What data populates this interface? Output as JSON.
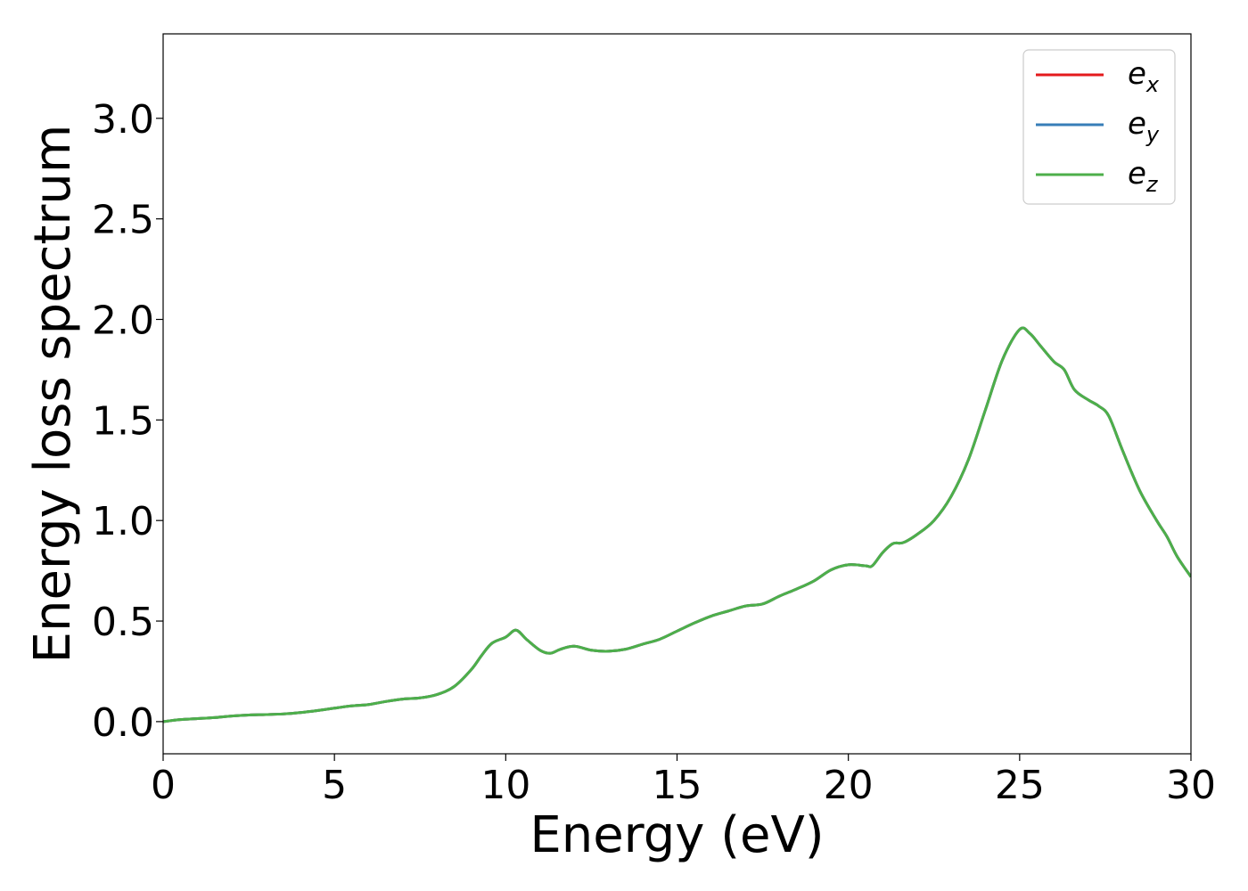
{
  "chart_data": {
    "type": "line",
    "title": "",
    "xlabel": "Energy (eV)",
    "ylabel": "Energy loss spectrum",
    "xlim": [
      0,
      30
    ],
    "ylim": [
      -0.16,
      3.42
    ],
    "xticks": [
      0,
      5,
      10,
      15,
      20,
      25,
      30
    ],
    "xtick_labels": [
      "0",
      "5",
      "10",
      "15",
      "20",
      "25",
      "30"
    ],
    "yticks": [
      0.0,
      0.5,
      1.0,
      1.5,
      2.0,
      2.5,
      3.0
    ],
    "ytick_labels": [
      "0.0",
      "0.5",
      "1.0",
      "1.5",
      "2.0",
      "2.5",
      "3.0"
    ],
    "grid": false,
    "legend_position": "top-right",
    "x": [
      0,
      0.5,
      1,
      1.5,
      2,
      2.5,
      3,
      3.5,
      4,
      4.5,
      5,
      5.5,
      6,
      6.5,
      7,
      7.5,
      8,
      8.5,
      9,
      9.3,
      9.6,
      10,
      10.3,
      10.6,
      11,
      11.3,
      11.6,
      12,
      12.5,
      13,
      13.5,
      14,
      14.5,
      15,
      15.5,
      16,
      16.5,
      17,
      17.5,
      18,
      18.5,
      19,
      19.5,
      20,
      20.5,
      20.7,
      21,
      21.3,
      21.6,
      22,
      22.5,
      23,
      23.5,
      24,
      24.5,
      25,
      25.3,
      25.6,
      26,
      26.3,
      26.6,
      27,
      27.3,
      27.6,
      28,
      28.5,
      29,
      29.3,
      29.6,
      30
    ],
    "series": [
      {
        "name": "e_x",
        "label_main": "e",
        "label_sub": "x",
        "color": "#e41a1c",
        "values": [
          0.0,
          0.01,
          0.015,
          0.02,
          0.028,
          0.033,
          0.035,
          0.038,
          0.045,
          0.055,
          0.067,
          0.078,
          0.085,
          0.1,
          0.112,
          0.118,
          0.135,
          0.175,
          0.26,
          0.33,
          0.39,
          0.42,
          0.455,
          0.41,
          0.355,
          0.34,
          0.36,
          0.375,
          0.355,
          0.35,
          0.36,
          0.385,
          0.41,
          0.45,
          0.49,
          0.525,
          0.55,
          0.575,
          0.585,
          0.625,
          0.66,
          0.7,
          0.755,
          0.78,
          0.775,
          0.775,
          0.84,
          0.885,
          0.89,
          0.93,
          1.0,
          1.12,
          1.3,
          1.55,
          1.8,
          1.95,
          1.93,
          1.87,
          1.79,
          1.75,
          1.65,
          1.6,
          1.57,
          1.52,
          1.35,
          1.15,
          1.0,
          0.92,
          0.82,
          0.72
        ]
      },
      {
        "name": "e_y",
        "label_main": "e",
        "label_sub": "y",
        "color": "#377eb8",
        "values": [
          0.0,
          0.01,
          0.015,
          0.02,
          0.028,
          0.033,
          0.035,
          0.038,
          0.045,
          0.055,
          0.067,
          0.078,
          0.085,
          0.1,
          0.112,
          0.118,
          0.135,
          0.175,
          0.26,
          0.33,
          0.39,
          0.42,
          0.455,
          0.41,
          0.355,
          0.34,
          0.36,
          0.375,
          0.355,
          0.35,
          0.36,
          0.385,
          0.41,
          0.45,
          0.49,
          0.525,
          0.55,
          0.575,
          0.585,
          0.625,
          0.66,
          0.7,
          0.755,
          0.78,
          0.775,
          0.775,
          0.84,
          0.885,
          0.89,
          0.93,
          1.0,
          1.12,
          1.3,
          1.55,
          1.8,
          1.95,
          1.93,
          1.87,
          1.79,
          1.75,
          1.65,
          1.6,
          1.57,
          1.52,
          1.35,
          1.15,
          1.0,
          0.92,
          0.82,
          0.72
        ]
      },
      {
        "name": "e_z",
        "label_main": "e",
        "label_sub": "z",
        "color": "#4daf4a",
        "values": [
          0.0,
          0.01,
          0.015,
          0.02,
          0.028,
          0.033,
          0.035,
          0.038,
          0.045,
          0.055,
          0.067,
          0.078,
          0.085,
          0.1,
          0.112,
          0.118,
          0.135,
          0.175,
          0.26,
          0.33,
          0.39,
          0.42,
          0.455,
          0.41,
          0.355,
          0.34,
          0.36,
          0.375,
          0.355,
          0.35,
          0.36,
          0.385,
          0.41,
          0.45,
          0.49,
          0.525,
          0.55,
          0.575,
          0.585,
          0.625,
          0.66,
          0.7,
          0.755,
          0.78,
          0.775,
          0.775,
          0.84,
          0.885,
          0.89,
          0.93,
          1.0,
          1.12,
          1.3,
          1.55,
          1.8,
          1.95,
          1.93,
          1.87,
          1.79,
          1.75,
          1.65,
          1.6,
          1.57,
          1.52,
          1.35,
          1.15,
          1.0,
          0.92,
          0.82,
          0.72
        ]
      }
    ]
  }
}
